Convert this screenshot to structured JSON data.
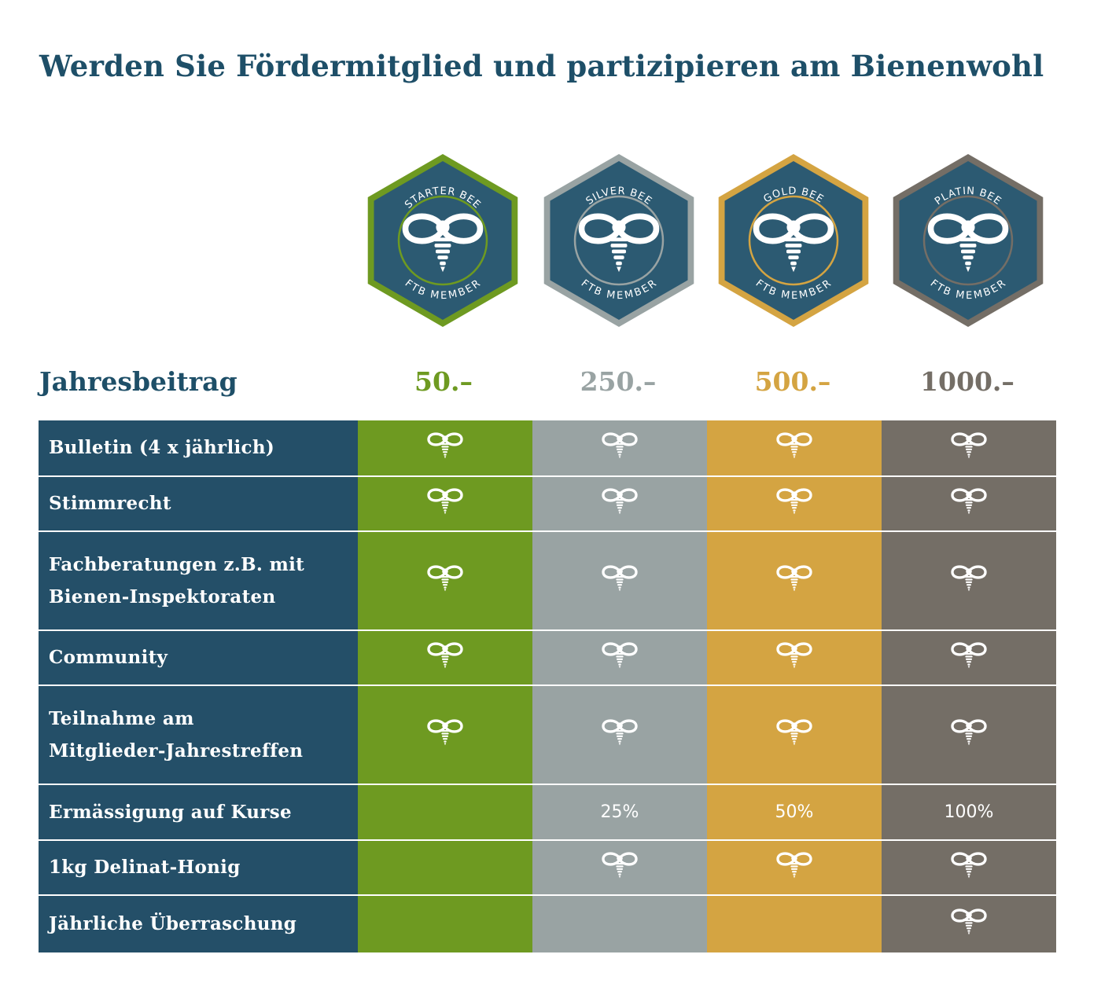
{
  "title": "Werden Sie Fördermitglied und partizipieren am Bienenwohl",
  "fee_label": "Jahresbeitrag",
  "tiers": [
    {
      "name": "STARTER BEE",
      "member": "FTB MEMBER",
      "price": "50.–",
      "color": "#6e9a21"
    },
    {
      "name": "SILVER BEE",
      "member": "FTB MEMBER",
      "price": "250.–",
      "color": "#99a3a3"
    },
    {
      "name": "GOLD BEE",
      "member": "FTB MEMBER",
      "price": "500.–",
      "color": "#d4a442"
    },
    {
      "name": "PLATIN BEE",
      "member": "FTB MEMBER",
      "price": "1000.–",
      "color": "#746e66"
    }
  ],
  "benefits": [
    {
      "label": [
        "Bulletin (4 x jährlich)"
      ],
      "values": [
        "bee-icon",
        "bee-icon",
        "bee-icon",
        "bee-icon"
      ]
    },
    {
      "label": [
        "Stimmrecht"
      ],
      "values": [
        "bee-icon",
        "bee-icon",
        "bee-icon",
        "bee-icon"
      ]
    },
    {
      "label": [
        "Fachberatungen z.B. mit",
        "Bienen-Inspektoraten"
      ],
      "values": [
        "bee-icon",
        "bee-icon",
        "bee-icon",
        "bee-icon"
      ]
    },
    {
      "label": [
        "Community"
      ],
      "values": [
        "bee-icon",
        "bee-icon",
        "bee-icon",
        "bee-icon"
      ]
    },
    {
      "label": [
        "Teilnahme am",
        "Mitglieder-Jahrestreffen"
      ],
      "values": [
        "bee-icon",
        "bee-icon",
        "bee-icon",
        "bee-icon"
      ]
    },
    {
      "label": [
        "Ermässigung auf Kurse"
      ],
      "values": [
        "",
        "25%",
        "50%",
        "100%"
      ]
    },
    {
      "label": [
        "1kg Delinat-Honig"
      ],
      "values": [
        "",
        "bee-icon",
        "bee-icon",
        "bee-icon"
      ]
    },
    {
      "label": [
        "Jährliche Überraschung"
      ],
      "values": [
        "",
        "",
        "",
        "bee-icon"
      ]
    }
  ],
  "colors": {
    "navy": "#244f68",
    "title": "#1e4f68",
    "badge_fill": "#2c5a72"
  }
}
